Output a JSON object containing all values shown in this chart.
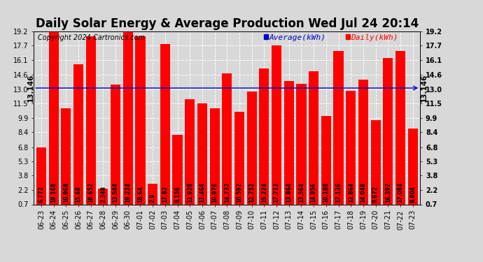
{
  "title": "Daily Solar Energy & Average Production Wed Jul 24 20:14",
  "copyright": "Copyright 2024 Cartronics.com",
  "average_label": "Average(kWh)",
  "daily_label": "Daily(kWh)",
  "average_value": 13.146,
  "categories": [
    "06-23",
    "06-24",
    "06-25",
    "06-26",
    "06-27",
    "06-28",
    "06-29",
    "06-30",
    "07-01",
    "07-02",
    "07-03",
    "07-04",
    "07-05",
    "07-06",
    "07-07",
    "07-08",
    "07-09",
    "07-10",
    "07-11",
    "07-12",
    "07-13",
    "07-14",
    "07-15",
    "07-16",
    "07-17",
    "07-18",
    "07-19",
    "07-20",
    "07-21",
    "07-22",
    "07-23"
  ],
  "values": [
    6.772,
    19.168,
    10.968,
    15.68,
    18.652,
    2.348,
    13.544,
    19.224,
    18.64,
    2.9,
    17.82,
    8.156,
    11.928,
    11.464,
    10.976,
    14.732,
    10.592,
    12.752,
    15.224,
    17.712,
    13.864,
    13.564,
    14.956,
    10.188,
    17.136,
    12.864,
    14.048,
    9.672,
    16.392,
    17.084,
    8.804
  ],
  "bar_color": "#ff0000",
  "avg_line_color": "#0000cc",
  "background_color": "#d8d8d8",
  "grid_color": "#ffffff",
  "ylim_min": 0.7,
  "ylim_max": 19.2,
  "yticks": [
    0.7,
    2.2,
    3.8,
    5.3,
    6.8,
    8.4,
    9.9,
    11.5,
    13.0,
    14.6,
    16.1,
    17.7,
    19.2
  ],
  "title_fontsize": 12,
  "copyright_fontsize": 7,
  "tick_label_fontsize": 7,
  "bar_label_fontsize": 5.5,
  "avg_annotation_fontsize": 7.5,
  "legend_fontsize": 8
}
